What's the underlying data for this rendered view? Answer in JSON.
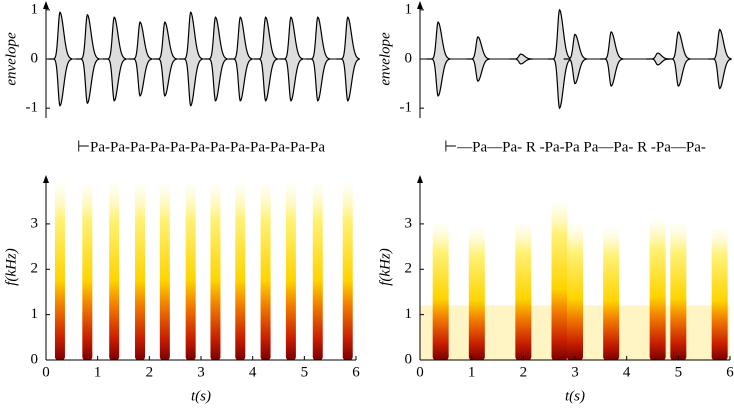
{
  "chart_data": [
    {
      "type": "envelope",
      "ylabel": "envelope",
      "annotation": "⊢Pa-Pa-Pa-Pa-Pa-Pa-Pa-Pa-Pa-Pa-Pa-Pa",
      "x": [
        0.27,
        0.8,
        1.32,
        1.82,
        2.3,
        2.8,
        3.28,
        3.76,
        4.25,
        4.74,
        5.26,
        5.84
      ],
      "values": [
        0.95,
        0.9,
        0.85,
        0.75,
        0.75,
        0.95,
        0.85,
        0.85,
        0.85,
        0.85,
        0.85,
        0.85
      ],
      "color": "#dddddd",
      "xlim": [
        0,
        6
      ],
      "ylim": [
        -1.2,
        1.2
      ],
      "yticks": [
        -1,
        0,
        1
      ]
    },
    {
      "type": "spectrogram",
      "xlabel": "t(s)",
      "ylabel": "f(kHz)",
      "x": [
        0.27,
        0.8,
        1.32,
        1.82,
        2.3,
        2.8,
        3.28,
        3.76,
        4.25,
        4.74,
        5.26,
        5.84
      ],
      "values": [
        3.9,
        3.9,
        3.9,
        3.9,
        3.9,
        3.9,
        3.9,
        3.9,
        3.9,
        3.9,
        3.9,
        3.9
      ],
      "xlim": [
        0,
        6
      ],
      "ylim": [
        0,
        4.1
      ],
      "xticks": [
        0,
        1,
        2,
        3,
        4,
        5,
        6
      ],
      "yticks": [
        0,
        1,
        2,
        3
      ]
    },
    {
      "type": "envelope",
      "ylabel": "envelope",
      "annotation": "⊢—Pa—Pa- R -Pa-Pa Pa—Pa- R -Pa—Pa-",
      "x": [
        0.35,
        1.12,
        1.95,
        2.7,
        3.0,
        3.7,
        4.6,
        5.0,
        5.8
      ],
      "values": [
        0.75,
        0.45,
        0.1,
        1.0,
        0.5,
        0.55,
        0.12,
        0.55,
        0.6
      ],
      "color": "#dddddd",
      "xlim": [
        0,
        6
      ],
      "ylim": [
        -1.2,
        1.2
      ],
      "yticks": [
        -1,
        0,
        1
      ]
    },
    {
      "type": "spectrogram",
      "xlabel": "t(s)",
      "ylabel": "f(kHz)",
      "x": [
        0.4,
        1.1,
        2.0,
        2.7,
        3.0,
        3.7,
        4.6,
        5.0,
        5.8
      ],
      "values": [
        3.0,
        2.9,
        3.0,
        3.5,
        3.0,
        2.9,
        3.1,
        3.0,
        2.9
      ],
      "xlim": [
        0,
        6
      ],
      "ylim": [
        0,
        4.1
      ],
      "xticks": [
        0,
        1,
        2,
        3,
        4,
        5,
        6
      ],
      "yticks": [
        0,
        1,
        2,
        3
      ]
    }
  ]
}
